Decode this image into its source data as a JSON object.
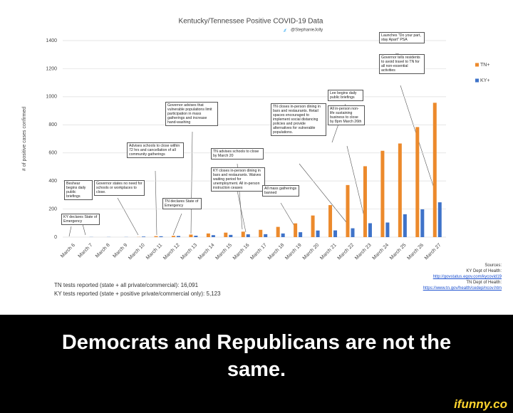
{
  "chart_data": {
    "type": "bar",
    "title": "Kentucky/Tennessee Positive COVID-19 Data",
    "subtitle": "@StephanieJolly",
    "y_label": "# of positive cases confirmed",
    "categories": [
      "March 6",
      "March 7",
      "March 8",
      "March 9",
      "March 10",
      "March 11",
      "March 12",
      "March 13",
      "March 14",
      "March 15",
      "March 16",
      "March 17",
      "March 18",
      "March 19",
      "March 20",
      "March 21",
      "March 22",
      "March 23",
      "March 24",
      "March 25",
      "March 26",
      "March 27"
    ],
    "series": [
      {
        "name": "TN+",
        "color": "#ec8a2c",
        "values": [
          0,
          0,
          0,
          0,
          1,
          7,
          9,
          18,
          26,
          32,
          39,
          52,
          73,
          98,
          154,
          228,
          371,
          505,
          615,
          667,
          784,
          957
        ]
      },
      {
        "name": "KY+",
        "color": "#3f73c9",
        "values": [
          0,
          1,
          1,
          1,
          4,
          6,
          8,
          10,
          14,
          16,
          20,
          21,
          26,
          35,
          47,
          48,
          63,
          99,
          104,
          163,
          198,
          248
        ]
      }
    ],
    "ylim": [
      0,
      1400
    ],
    "yticks": [
      0,
      200,
      400,
      600,
      800,
      1000,
      1200,
      1400
    ],
    "grid": true,
    "legend": "right",
    "annotations": [
      "KY declares State of Emergency",
      "Beshear begins daily public briefings",
      "Governor states no need for schools or workplaces to close.",
      "Advises schools to close within 72 hrs and cancellation of all community gatherings",
      "TN declares State of Emergency",
      "Governor advises that vulnerable populations limit participation in mass gatherings and increase hand-washing",
      "TN advises schools to close by March 20",
      "KY closes in-person dining in bars and restaurants. Waives waiting period for unemployment. All in-person instruction ceases",
      "TN closes in-person dining in bars and restaurants. Retail spaces encouraged to implement social distancing policies and provide alternatives for vulnerable populations.",
      "All mass gatherings banned",
      "Lee begins daily public briefings",
      "All in-person non-life sustaining business to close by 8pm March 26th",
      "Launches \"Do your part, stay Apart\" PSA",
      "Governor tells residents to avoid travel to TN for all non-essential activities"
    ]
  },
  "tests": [
    "TN tests reported (state + all private/commercial): 16,091",
    "KY tests reported (state + positive private/commercial only): 5,123"
  ],
  "sources": [
    "Sources:",
    "KY Dept of Health:",
    "http://govstatus.egov.com/kycovid19",
    "TN Dept of Health:",
    "https://www.tn.gov/health/cedep/ncov.htm"
  ],
  "caption": "Democrats and Republicans are not the same.",
  "watermark": "ifunny.co"
}
